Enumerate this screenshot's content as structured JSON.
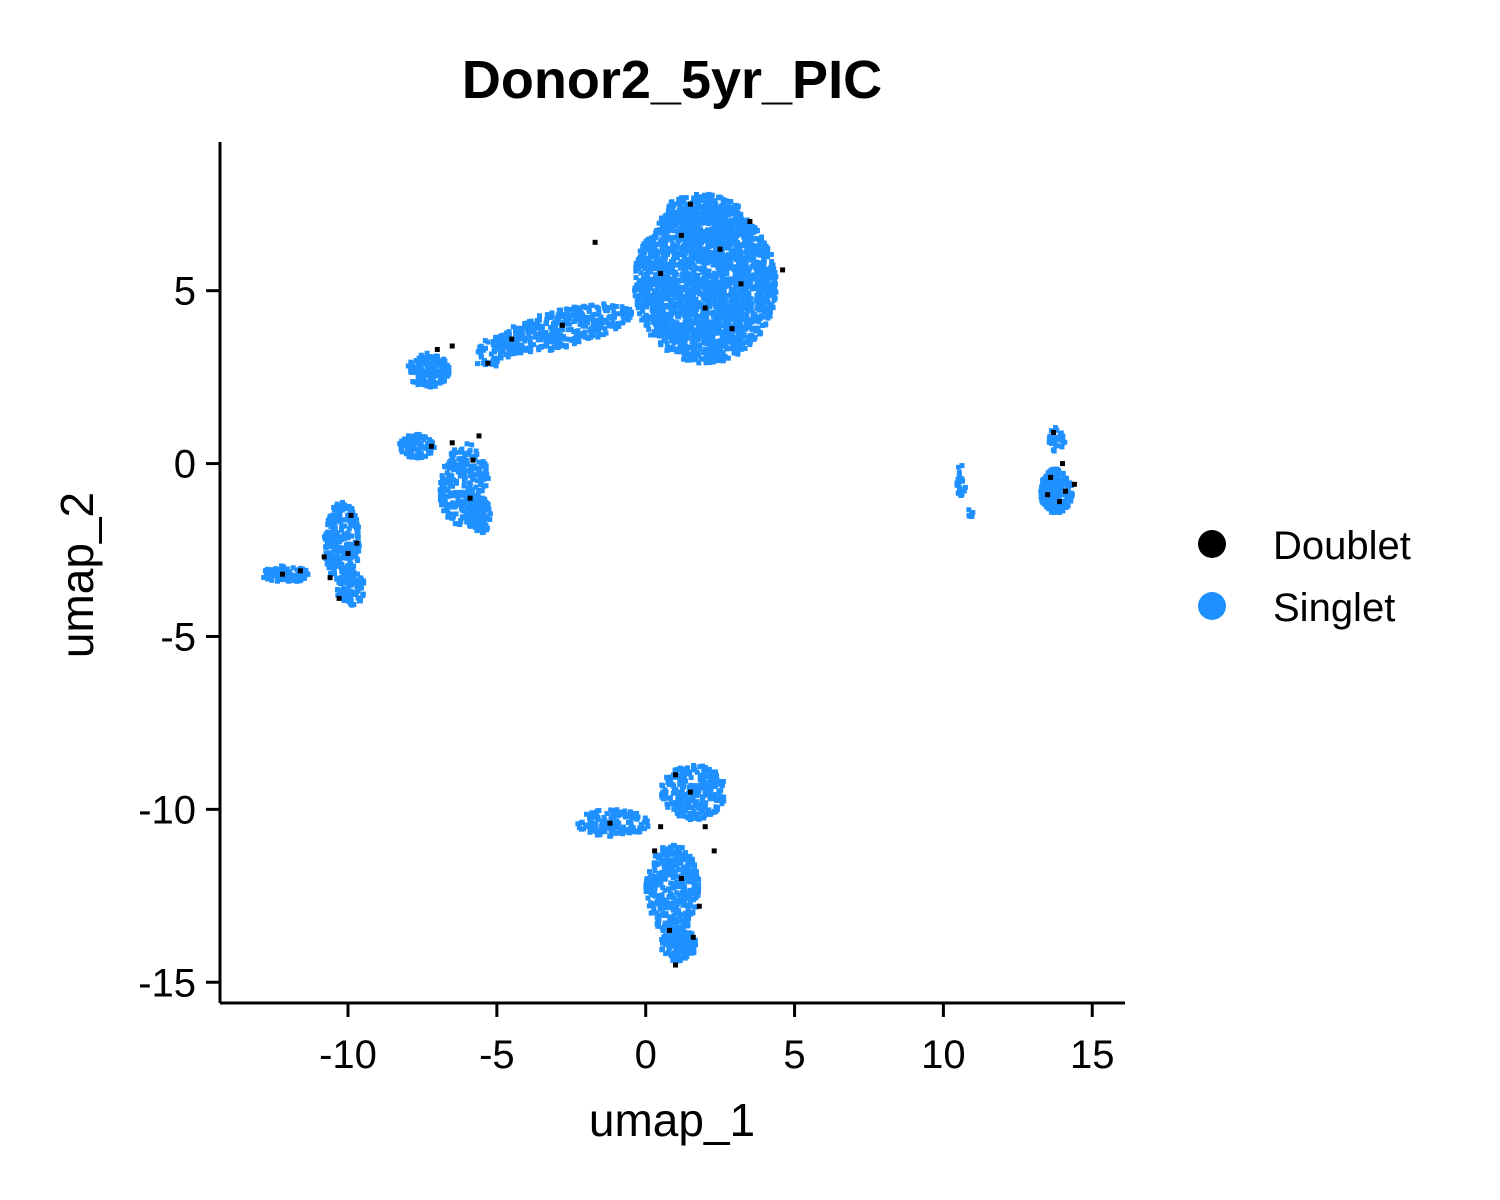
{
  "chart_data": {
    "type": "scatter",
    "title": "Donor2_5yr_PIC",
    "xlabel": "umap_1",
    "ylabel": "umap_2",
    "xlim": [
      -14.3,
      16.1
    ],
    "ylim": [
      -15.6,
      9.3
    ],
    "x_ticks": [
      -10,
      -5,
      0,
      5,
      10,
      15
    ],
    "x_tick_labels": [
      "-10",
      "-5",
      "0",
      "5",
      "10",
      "15"
    ],
    "y_ticks": [
      -15,
      -10,
      -5,
      0,
      5
    ],
    "y_tick_labels": [
      "-15",
      "-10",
      "-5",
      "0",
      "5"
    ],
    "grid": false,
    "legend_position": "right",
    "series": [
      {
        "name": "Doublet",
        "color": "#000000",
        "points": [
          [
            1.5,
            7.5
          ],
          [
            2.5,
            6.2
          ],
          [
            3.5,
            7.0
          ],
          [
            0.5,
            5.5
          ],
          [
            2.0,
            4.5
          ],
          [
            3.2,
            5.2
          ],
          [
            1.2,
            6.6
          ],
          [
            4.6,
            5.6
          ],
          [
            -1.7,
            6.4
          ],
          [
            2.9,
            3.9
          ],
          [
            -2.8,
            4.0
          ],
          [
            -4.5,
            3.6
          ],
          [
            -7.0,
            3.3
          ],
          [
            -6.5,
            3.4
          ],
          [
            -5.3,
            2.9
          ],
          [
            -5.6,
            0.8
          ],
          [
            -5.8,
            0.1
          ],
          [
            -6.5,
            0.6
          ],
          [
            -7.2,
            0.5
          ],
          [
            -5.9,
            -1.0
          ],
          [
            -10.0,
            -2.6
          ],
          [
            -10.6,
            -3.3
          ],
          [
            -9.7,
            -2.3
          ],
          [
            -10.3,
            -3.9
          ],
          [
            -11.6,
            -3.1
          ],
          [
            -12.2,
            -3.2
          ],
          [
            -9.9,
            -1.5
          ],
          [
            -10.8,
            -2.7
          ],
          [
            13.6,
            -0.4
          ],
          [
            14.1,
            -0.8
          ],
          [
            13.9,
            -1.1
          ],
          [
            14.4,
            -0.6
          ],
          [
            13.7,
            0.9
          ],
          [
            14.0,
            0.0
          ],
          [
            13.5,
            -0.9
          ],
          [
            1.0,
            -9.0
          ],
          [
            1.5,
            -9.5
          ],
          [
            0.5,
            -10.5
          ],
          [
            2.0,
            -10.5
          ],
          [
            1.2,
            -12.0
          ],
          [
            0.8,
            -13.5
          ],
          [
            1.0,
            -14.5
          ],
          [
            1.8,
            -12.8
          ],
          [
            -1.2,
            -10.4
          ],
          [
            0.3,
            -11.2
          ],
          [
            1.6,
            -13.7
          ],
          [
            2.3,
            -11.2
          ]
        ]
      },
      {
        "name": "Singlet",
        "color": "#1E90FF",
        "clusters": [
          {
            "cx": 2.0,
            "cy": 5.2,
            "rx": 2.4,
            "ry": 2.3,
            "n": 2200,
            "angle": 0
          },
          {
            "cx": 1.9,
            "cy": 7.1,
            "rx": 1.4,
            "ry": 0.7,
            "n": 260,
            "angle": 0
          },
          {
            "cx": -2.8,
            "cy": 3.9,
            "rx": 2.4,
            "ry": 0.55,
            "n": 380,
            "angle": 0.2
          },
          {
            "cx": -5.0,
            "cy": 3.3,
            "rx": 0.8,
            "ry": 0.45,
            "n": 60,
            "angle": 0.5
          },
          {
            "cx": -7.3,
            "cy": 2.7,
            "rx": 0.7,
            "ry": 0.5,
            "n": 150,
            "angle": 0
          },
          {
            "cx": -7.7,
            "cy": 0.5,
            "rx": 0.6,
            "ry": 0.35,
            "n": 90,
            "angle": 0
          },
          {
            "cx": -6.1,
            "cy": -0.6,
            "rx": 0.8,
            "ry": 1.2,
            "n": 280,
            "angle": -0.2
          },
          {
            "cx": -5.6,
            "cy": -1.5,
            "rx": 0.4,
            "ry": 0.55,
            "n": 80,
            "angle": 0
          },
          {
            "cx": -10.2,
            "cy": -2.3,
            "rx": 0.6,
            "ry": 1.2,
            "n": 260,
            "angle": 0
          },
          {
            "cx": -9.9,
            "cy": -3.6,
            "rx": 0.5,
            "ry": 0.5,
            "n": 80,
            "angle": 0
          },
          {
            "cx": -12.1,
            "cy": -3.2,
            "rx": 0.8,
            "ry": 0.25,
            "n": 90,
            "angle": 0
          },
          {
            "cx": 10.6,
            "cy": -0.5,
            "rx": 0.15,
            "ry": 0.5,
            "n": 25,
            "angle": 0
          },
          {
            "cx": 10.9,
            "cy": -1.5,
            "rx": 0.1,
            "ry": 0.2,
            "n": 8,
            "angle": 0
          },
          {
            "cx": 13.8,
            "cy": -0.8,
            "rx": 0.55,
            "ry": 0.65,
            "n": 220,
            "angle": 0
          },
          {
            "cx": 13.8,
            "cy": 0.7,
            "rx": 0.3,
            "ry": 0.35,
            "n": 35,
            "angle": 0
          },
          {
            "cx": 1.6,
            "cy": -9.5,
            "rx": 1.1,
            "ry": 0.8,
            "n": 270,
            "angle": 0
          },
          {
            "cx": -1.1,
            "cy": -10.4,
            "rx": 1.2,
            "ry": 0.4,
            "n": 150,
            "angle": 0
          },
          {
            "cx": 0.9,
            "cy": -12.3,
            "rx": 0.9,
            "ry": 1.3,
            "n": 380,
            "angle": 0
          },
          {
            "cx": 1.1,
            "cy": -13.9,
            "rx": 0.6,
            "ry": 0.5,
            "n": 140,
            "angle": 0
          }
        ]
      }
    ]
  },
  "legend": {
    "items": [
      {
        "label": "Doublet",
        "color": "#000000"
      },
      {
        "label": "Singlet",
        "color": "#1E90FF"
      }
    ]
  }
}
